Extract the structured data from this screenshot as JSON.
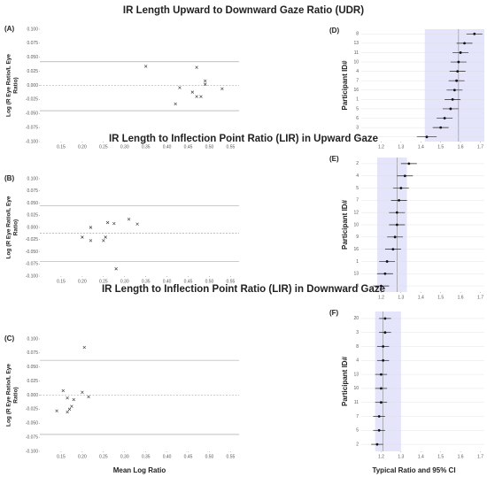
{
  "chart_data": [
    {
      "type": "scatter",
      "title": "IR Length Upward to Downward Gaze Ratio (UDR)",
      "panel": "(A)",
      "ylabel": [
        "Log (R Eye Ratio/L Eye",
        "Ratio)"
      ],
      "x": [
        0.35,
        0.42,
        0.43,
        0.46,
        0.47,
        0.47,
        0.48,
        0.49,
        0.49,
        0.53
      ],
      "values": [
        0.034,
        -0.033,
        -0.004,
        -0.012,
        -0.02,
        0.032,
        -0.02,
        0.008,
        0.002,
        -0.006
      ],
      "reference_lines": [
        0.042,
        0.0,
        -0.045
      ],
      "reference_styles": [
        "solid",
        "dashed",
        "solid"
      ],
      "xlim": [
        0.1,
        0.57
      ],
      "ylim": [
        -0.1,
        0.1
      ],
      "xticks": [
        0.15,
        {
          "value": 0.2,
          "label": "0.20"
        },
        0.25,
        {
          "value": 0.3,
          "label": "0.30"
        },
        0.35,
        {
          "value": 0.4,
          "label": "0.40"
        },
        0.45,
        {
          "value": 0.5,
          "label": "0.50"
        },
        0.55
      ],
      "yticks": [
        {
          "value": 0.1,
          "label": "0.100"
        },
        {
          "value": 0.075,
          "label": "0.075"
        },
        {
          "value": 0.05,
          "label": "0.050"
        },
        {
          "value": 0.025,
          "label": "0.025"
        },
        {
          "value": 0,
          "label": "0.000"
        },
        {
          "value": -0.025,
          "label": "-0.025"
        },
        {
          "value": -0.05,
          "label": "-0.050"
        },
        {
          "value": -0.075,
          "label": "-0.075"
        },
        {
          "value": -0.1,
          "label": "-0.100"
        }
      ]
    },
    {
      "type": "forest",
      "panel": "(D)",
      "ylabel": [
        "Participant ID#"
      ],
      "categories": [
        "8",
        "13",
        "11",
        "10",
        "4",
        "7",
        "16",
        "1",
        "5",
        "6",
        "3",
        "2"
      ],
      "values": [
        1.67,
        1.62,
        1.6,
        1.59,
        1.585,
        1.58,
        1.57,
        1.56,
        1.55,
        1.52,
        1.5,
        1.43
      ],
      "errors": [
        0.04,
        0.04,
        0.04,
        0.04,
        0.04,
        0.04,
        0.04,
        0.04,
        0.04,
        0.04,
        0.04,
        0.05
      ],
      "reference_line": 1.59,
      "band": [
        1.42,
        1.72
      ],
      "xlim": [
        1.1,
        1.72
      ],
      "xticks": [
        1.2,
        1.3,
        1.4,
        1.5,
        1.6,
        1.7
      ]
    },
    {
      "type": "scatter",
      "title": "IR Length to Inflection Point Ratio (LIR) in Upward Gaze",
      "panel": "(B)",
      "ylabel": [
        "Log (R Eye Ratio/L Eye",
        "Ratio)"
      ],
      "x": [
        0.2,
        0.22,
        0.22,
        0.25,
        0.255,
        0.26,
        0.275,
        0.28,
        0.31,
        0.33
      ],
      "values": [
        -0.02,
        0.0,
        -0.027,
        -0.027,
        -0.02,
        0.01,
        0.008,
        -0.085,
        0.017,
        0.007
      ],
      "reference_lines": [
        0.045,
        -0.012,
        -0.07
      ],
      "reference_styles": [
        "solid",
        "dashed",
        "solid"
      ],
      "xlim": [
        0.1,
        0.57
      ],
      "ylim": [
        -0.1,
        0.1
      ],
      "xticks": [
        0.15,
        {
          "value": 0.2,
          "label": "0.20"
        },
        0.25,
        {
          "value": 0.3,
          "label": "0.30"
        },
        0.35,
        {
          "value": 0.4,
          "label": "0.40"
        },
        0.45,
        {
          "value": 0.5,
          "label": "0.50"
        },
        0.55
      ],
      "yticks": [
        {
          "value": 0.1,
          "label": "0.100"
        },
        {
          "value": 0.075,
          "label": "0.075"
        },
        {
          "value": 0.05,
          "label": "0.050"
        },
        {
          "value": 0.025,
          "label": "0.025"
        },
        {
          "value": 0,
          "label": "0.000"
        },
        {
          "value": -0.025,
          "label": "-0.025"
        },
        {
          "value": -0.05,
          "label": "-0.050"
        },
        {
          "value": -0.075,
          "label": "-0.075"
        },
        {
          "value": -0.1,
          "label": "-0.100"
        }
      ]
    },
    {
      "type": "forest",
      "panel": "(E)",
      "ylabel": [
        "Participant ID#"
      ],
      "categories": [
        "2",
        "4",
        "5",
        "7",
        "12",
        "10",
        "9",
        "16",
        "1",
        "13",
        "8"
      ],
      "values": [
        1.34,
        1.32,
        1.3,
        1.29,
        1.28,
        1.28,
        1.27,
        1.26,
        1.23,
        1.22,
        1.2
      ],
      "errors": [
        0.04,
        0.04,
        0.04,
        0.04,
        0.04,
        0.04,
        0.04,
        0.04,
        0.04,
        0.04,
        0.04
      ],
      "reference_line": 1.28,
      "band": [
        1.18,
        1.33
      ],
      "xlim": [
        1.1,
        1.72
      ],
      "xticks": [
        1.2,
        1.3,
        1.4,
        1.5,
        1.6,
        1.7
      ]
    },
    {
      "type": "scatter",
      "title": "IR Length to Inflection Point Ratio  (LIR) in Downward Gaze",
      "panel": "(C)",
      "ylabel": [
        "Log (R Eye Ratio/L Eye",
        "Ratio)"
      ],
      "xlabel": "Mean Log Ratio",
      "x": [
        0.14,
        0.155,
        0.165,
        0.165,
        0.17,
        0.175,
        0.18,
        0.2,
        0.205,
        0.215
      ],
      "values": [
        -0.028,
        0.008,
        -0.005,
        -0.03,
        -0.025,
        -0.02,
        -0.008,
        0.005,
        0.085,
        -0.003
      ],
      "reference_lines": [
        0.062,
        0.0,
        -0.07
      ],
      "reference_styles": [
        "solid",
        "dashed",
        "solid"
      ],
      "xlim": [
        0.1,
        0.57
      ],
      "ylim": [
        -0.1,
        0.1
      ],
      "xticks": [
        0.15,
        {
          "value": 0.2,
          "label": "0.20"
        },
        0.25,
        {
          "value": 0.3,
          "label": "0.30"
        },
        0.35,
        {
          "value": 0.4,
          "label": "0.40"
        },
        0.45,
        {
          "value": 0.5,
          "label": "0.50"
        },
        0.55
      ],
      "yticks": [
        {
          "value": 0.1,
          "label": "0.100"
        },
        {
          "value": 0.075,
          "label": "0.075"
        },
        {
          "value": 0.05,
          "label": "0.050"
        },
        {
          "value": 0.025,
          "label": "0.025"
        },
        {
          "value": 0,
          "label": "0.000"
        },
        {
          "value": -0.025,
          "label": "-0.025"
        },
        {
          "value": -0.05,
          "label": "-0.050"
        },
        {
          "value": -0.075,
          "label": "-0.075"
        },
        {
          "value": -0.1,
          "label": "-0.100"
        }
      ]
    },
    {
      "type": "forest",
      "panel": "(F)",
      "ylabel": [
        "Participant ID#"
      ],
      "xlabel": "Typical Ratio and 95% CI",
      "categories": [
        "20",
        "3",
        "8",
        "4",
        "13",
        "10",
        "11",
        "7",
        "5",
        "2"
      ],
      "values": [
        1.22,
        1.22,
        1.21,
        1.21,
        1.2,
        1.2,
        1.2,
        1.19,
        1.19,
        1.18
      ],
      "errors": [
        0.03,
        0.03,
        0.03,
        0.03,
        0.03,
        0.03,
        0.03,
        0.03,
        0.03,
        0.03
      ],
      "reference_line": 1.21,
      "band": [
        1.17,
        1.3
      ],
      "xlim": [
        1.1,
        1.72
      ],
      "xticks": [
        1.2,
        1.3,
        1.4,
        1.5,
        1.6,
        1.7
      ]
    }
  ]
}
